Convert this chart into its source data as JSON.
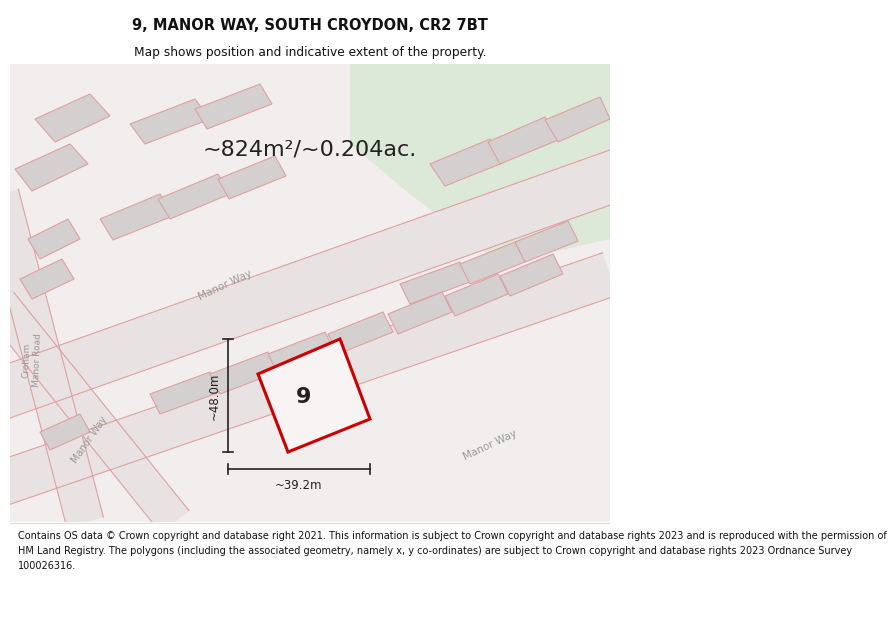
{
  "title": "9, MANOR WAY, SOUTH CROYDON, CR2 7BT",
  "subtitle": "Map shows position and indicative extent of the property.",
  "area_text": "~824m²/~0.204ac.",
  "width_label": "~39.2m",
  "height_label": "~48.0m",
  "property_number": "9",
  "footer_lines": [
    "Contains OS data © Crown copyright and database right 2021. This information is subject to Crown copyright and database rights 2023 and is reproduced with the permission of",
    "HM Land Registry. The polygons (including the associated geometry, namely x, y co-ordinates) are subject to Crown copyright and database rights 2023 Ordnance Survey",
    "100026316."
  ],
  "map_bg": "#f2eeee",
  "green_color": "#dce8d8",
  "road_fill": "#e8e2e2",
  "road_edge": "#e0a0a0",
  "building_fill": "#d4d0d0",
  "building_edge": "#e0a0a0",
  "property_fill": "#f8f4f4",
  "property_edge": "#cc0000",
  "dim_color": "#222222",
  "text_dark": "#222222",
  "road_label_color": "#999999",
  "title_color": "#111111",
  "footer_color": "#111111"
}
